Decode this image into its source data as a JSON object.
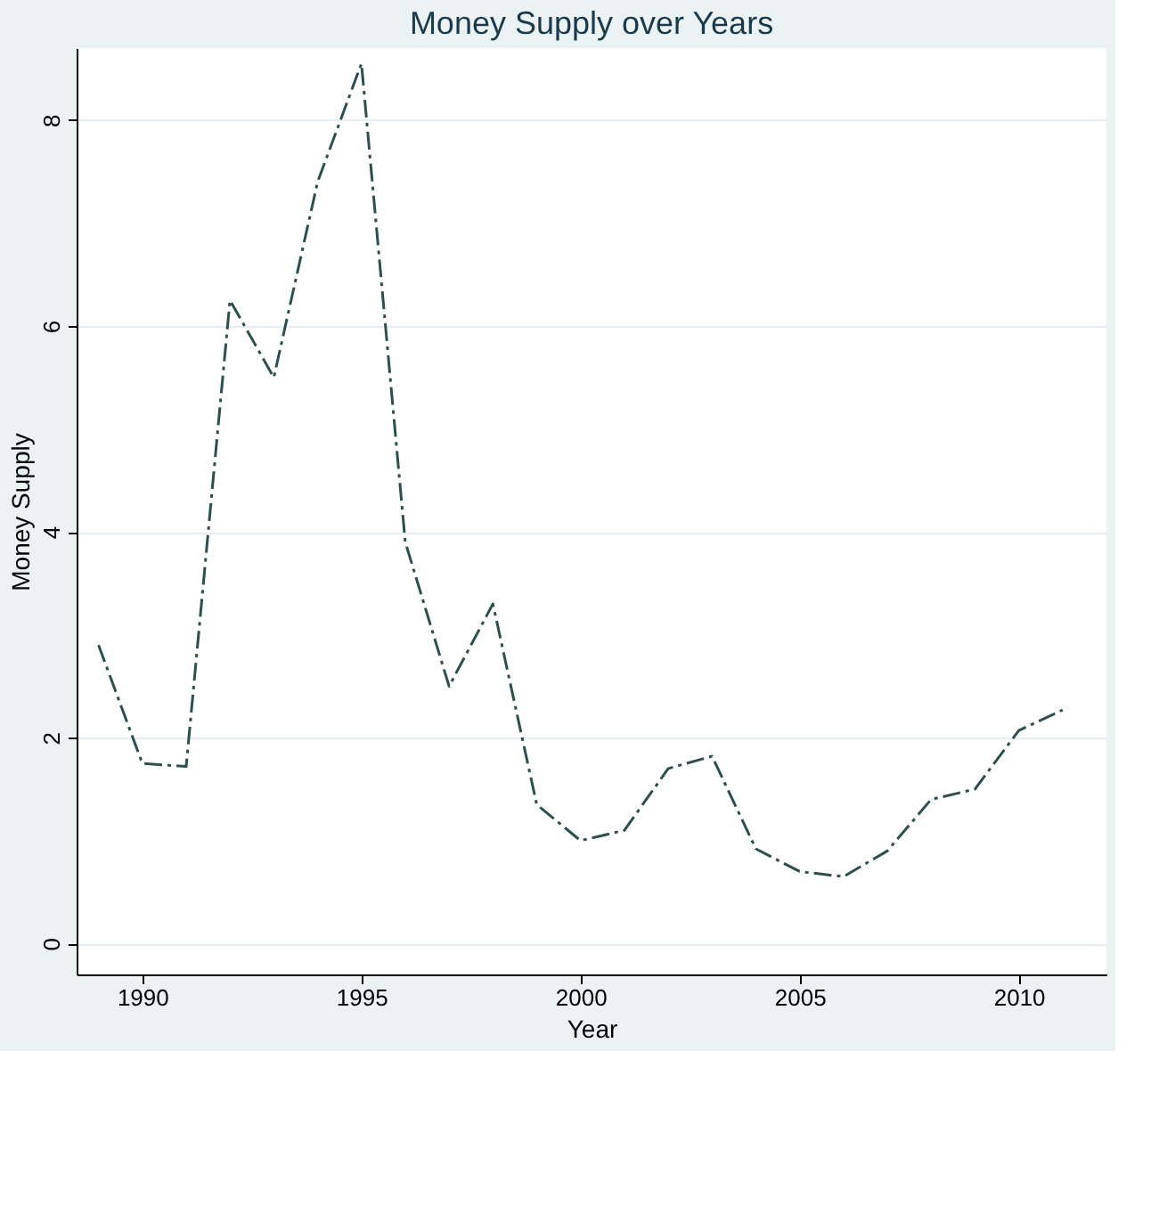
{
  "chart_data": {
    "type": "line",
    "title": "Money Supply over Years",
    "xlabel": "Year",
    "ylabel": "Money Supply",
    "x": [
      1989,
      1990,
      1991,
      1992,
      1993,
      1994,
      1995,
      1996,
      1997,
      1998,
      1999,
      2000,
      2001,
      2002,
      2003,
      2004,
      2005,
      2006,
      2007,
      2008,
      2009,
      2010,
      2011
    ],
    "series": [
      {
        "color": "#2f4f4f",
        "values": [
          2.9,
          1.75,
          1.72,
          6.25,
          5.5,
          7.4,
          8.55,
          3.9,
          2.5,
          3.3,
          1.35,
          1.0,
          1.1,
          1.7,
          1.82,
          0.92,
          0.7,
          0.65,
          0.9,
          1.4,
          1.5,
          2.07,
          2.27
        ]
      }
    ],
    "xlim": [
      1988.5,
      2012
    ],
    "xticks": [
      1990,
      1995,
      2000,
      2005,
      2010
    ],
    "ylim": [
      -0.3,
      8.7
    ],
    "yticks": [
      0,
      2,
      4,
      6,
      8
    ],
    "grid": "y",
    "marker": "none",
    "line_style": "dashed"
  }
}
